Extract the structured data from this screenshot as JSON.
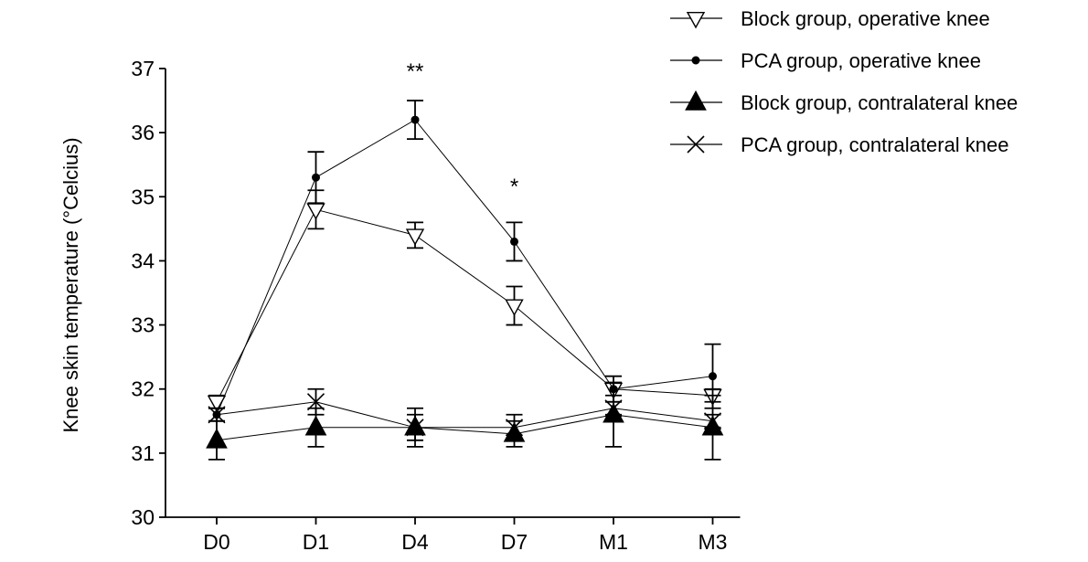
{
  "chart_data": {
    "type": "line",
    "ylabel": "Knee skin temperature (°Celcius)",
    "xlabel": "",
    "categories": [
      "D0",
      "D1",
      "D4",
      "D7",
      "M1",
      "M3"
    ],
    "ylim": [
      30,
      37
    ],
    "yticks": [
      30,
      31,
      32,
      33,
      34,
      35,
      36,
      37
    ],
    "grid": false,
    "legend_position": "top-right",
    "series": [
      {
        "name": "Block group, operative knee",
        "marker": "triangle-down-open",
        "values": [
          31.8,
          34.8,
          34.4,
          33.3,
          32.0,
          31.9
        ],
        "error": [
          0.1,
          0.3,
          0.2,
          0.3,
          0.1,
          0.1
        ]
      },
      {
        "name": "PCA group, operative knee",
        "marker": "circle-small-filled",
        "values": [
          31.6,
          35.3,
          36.2,
          34.3,
          32.0,
          32.2
        ],
        "error": [
          0.1,
          0.4,
          0.3,
          0.3,
          0.2,
          0.5
        ]
      },
      {
        "name": "Block group, contralateral knee",
        "marker": "triangle-up-filled",
        "values": [
          31.2,
          31.4,
          31.4,
          31.3,
          31.6,
          31.4
        ],
        "error": [
          0.3,
          0.3,
          0.2,
          0.2,
          0.5,
          0.5
        ]
      },
      {
        "name": "PCA group, contralateral knee",
        "marker": "x-cross",
        "values": [
          31.6,
          31.8,
          31.4,
          31.4,
          31.7,
          31.5
        ],
        "error": [
          0.1,
          0.2,
          0.3,
          0.2,
          0.1,
          0.1
        ]
      }
    ],
    "annotations": [
      {
        "category": "D4",
        "value": 37.1,
        "text": "**"
      },
      {
        "category": "D7",
        "value": 35.3,
        "text": "*"
      }
    ],
    "color": "#000000"
  }
}
